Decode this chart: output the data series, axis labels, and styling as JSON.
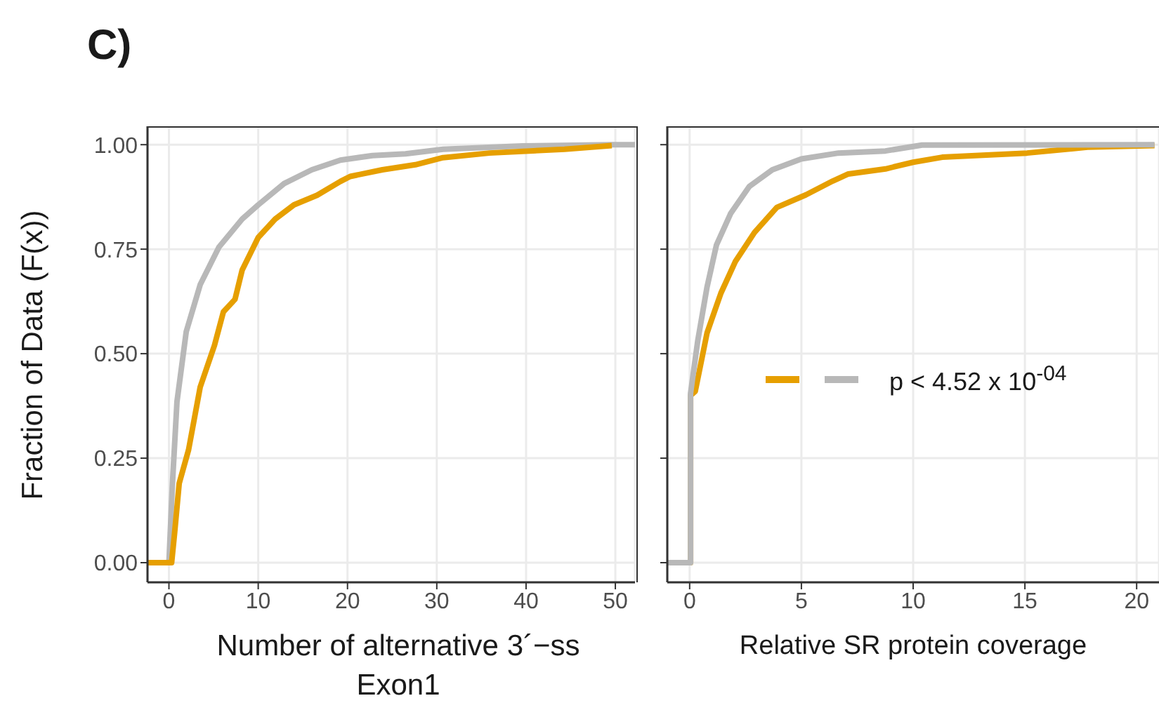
{
  "chart_data": [
    {
      "type": "line",
      "title": "C)",
      "xlabel": "Number of alternative 3´−ss Exon1",
      "ylabel": "Fraction of Data (F(x))",
      "xlim": [
        -2.4,
        52.2
      ],
      "xticks": [
        0,
        10,
        20,
        30,
        40,
        50
      ],
      "ylim": [
        -0.047,
        1.044
      ],
      "yticks": [
        {
          "value": 0.0,
          "label": "0.00"
        },
        0.25,
        {
          "value": 0.5,
          "label": "0.50"
        },
        0.75,
        {
          "value": 1.0,
          "label": "1.00"
        }
      ],
      "grid": true,
      "line_style": "solid",
      "marker": "none",
      "series": [
        {
          "color": "#b8b8b8",
          "x": [
            -2.4,
            0,
            0.37,
            0.9,
            1.94,
            3.5,
            5.6,
            8.2,
            10,
            12.9,
            16,
            19.2,
            22.8,
            26.5,
            30.7,
            39.6,
            49.6,
            52.2
          ],
          "values": [
            0,
            0,
            0.18,
            0.385,
            0.553,
            0.665,
            0.755,
            0.822,
            0.856,
            0.907,
            0.94,
            0.963,
            0.974,
            0.978,
            0.989,
            0.997,
            1.0,
            1.0
          ]
        },
        {
          "color": "#e69f00",
          "x": [
            -2.4,
            0.3,
            0.63,
            1.15,
            2.2,
            3.5,
            5.1,
            6.1,
            7.4,
            8.2,
            10,
            11.9,
            14,
            16.6,
            19.2,
            20.3,
            23.9,
            27.6,
            30.7,
            35.9,
            44.3,
            49.6
          ],
          "values": [
            0,
            0,
            0.07,
            0.19,
            0.27,
            0.42,
            0.52,
            0.6,
            0.63,
            0.7,
            0.778,
            0.822,
            0.856,
            0.879,
            0.912,
            0.924,
            0.94,
            0.952,
            0.969,
            0.98,
            0.989,
            0.998
          ]
        }
      ]
    },
    {
      "type": "line",
      "xlabel": "Relative SR protein coverage",
      "xlim": [
        -1,
        21
      ],
      "xticks": [
        0,
        5,
        10,
        15,
        20
      ],
      "ylim": [
        -0.047,
        1.044
      ],
      "yticks": [
        {
          "value": 0.0,
          "label": null
        },
        {
          "value": 0.25,
          "label": null
        },
        {
          "value": 0.5,
          "label": null
        },
        {
          "value": 0.75,
          "label": null
        },
        {
          "value": 1.0,
          "label": null
        }
      ],
      "tick_labels": "x",
      "grid": true,
      "line_style": "solid",
      "marker": "none",
      "annotations": [
        "p < 4.52 x 10$^{-04}$"
      ],
      "series": [
        {
          "color": "#e69f00",
          "x": [
            -1,
            0.04,
            0.04,
            0.25,
            0.78,
            1.4,
            2.04,
            2.9,
            3.9,
            5.2,
            6.4,
            7.1,
            8.76,
            10,
            11.3,
            15.1,
            17.8,
            20.8
          ],
          "values": [
            0,
            0,
            0.4,
            0.41,
            0.55,
            0.645,
            0.72,
            0.79,
            0.85,
            0.88,
            0.913,
            0.93,
            0.942,
            0.958,
            0.97,
            0.98,
            0.994,
            0.998
          ]
        },
        {
          "color": "#b8b8b8",
          "x": [
            -1,
            0.04,
            0.04,
            0.36,
            0.78,
            1.2,
            1.83,
            2.67,
            3.7,
            5,
            6.66,
            8.76,
            10.4,
            20.8
          ],
          "values": [
            0,
            0,
            0.405,
            0.53,
            0.66,
            0.76,
            0.835,
            0.9,
            0.94,
            0.966,
            0.98,
            0.985,
            0.999,
            1.0
          ]
        }
      ]
    }
  ]
}
